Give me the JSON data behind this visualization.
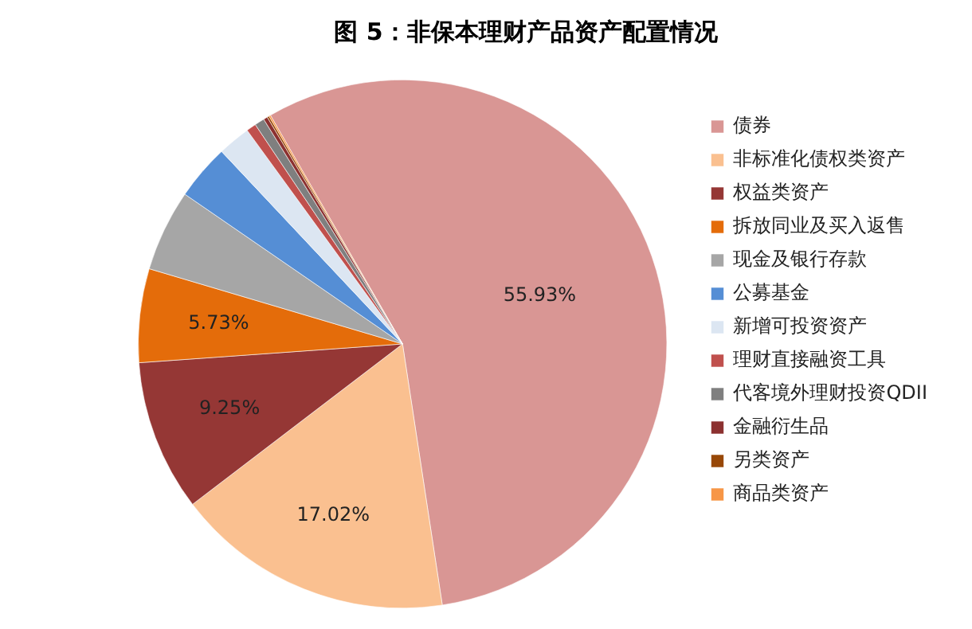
{
  "chart_data": {
    "type": "pie",
    "title": "图 5：非保本理财产品资产配置情况",
    "categories": [
      "债券",
      "非标准化债权类资产",
      "权益类资产",
      "拆放同业及买入返售",
      "现金及银行存款",
      "公募基金",
      "新增可投资资产",
      "理财直接融资工具",
      "代客境外理财投资QDII",
      "金融衍生品",
      "另类资产",
      "商品类资产"
    ],
    "values": [
      55.93,
      17.02,
      9.25,
      5.73,
      5.0,
      3.4,
      2.0,
      0.6,
      0.6,
      0.25,
      0.12,
      0.1
    ],
    "colors": [
      "#d99694",
      "#fac090",
      "#953735",
      "#e46c0a",
      "#a6a6a6",
      "#558ed5",
      "#dce6f2",
      "#c0504d",
      "#7f7f7f",
      "#8c3130",
      "#984807",
      "#f79646"
    ],
    "value_labels": [
      "55.93%",
      "17.02%",
      "9.25%",
      "5.73%",
      null,
      null,
      null,
      null,
      null,
      null,
      null,
      null
    ],
    "legend": "right"
  }
}
